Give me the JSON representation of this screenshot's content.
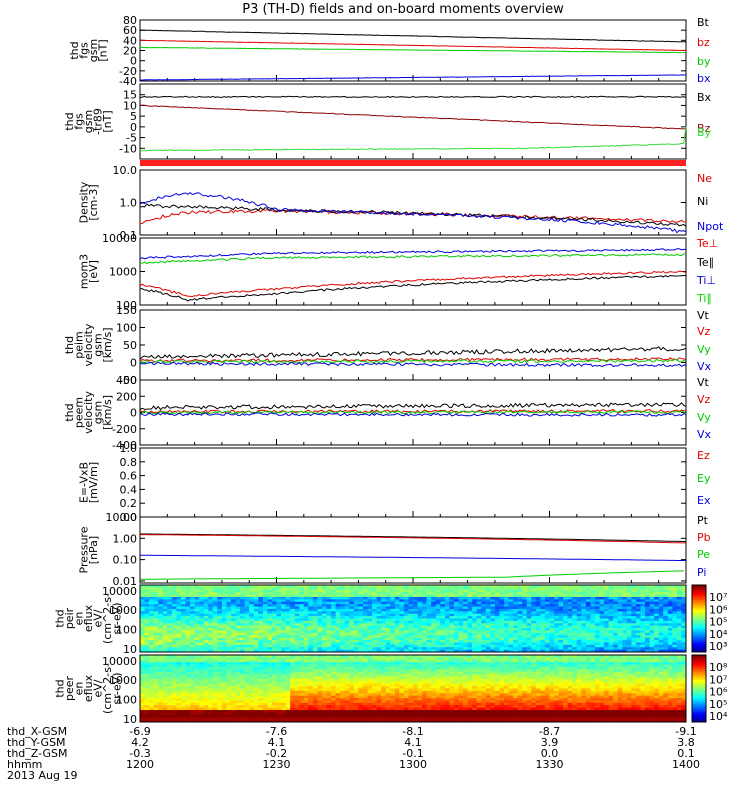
{
  "title": "P3 (TH-D) fields and on-board moments overview",
  "colors": {
    "black": "#000000",
    "red": "#e00000",
    "green": "#00cc00",
    "blue": "#0000dd",
    "darkred": "#8b0000",
    "lime": "#33dd33",
    "stripe": "#ff2020"
  },
  "chart_data": [
    {
      "type": "line",
      "ylabel": [
        "thd",
        "fgs",
        "gsm",
        "[nT]"
      ],
      "ylim": [
        -40,
        80
      ],
      "yticks": [
        "80",
        "60",
        "40",
        "20",
        "0",
        "-20",
        "-40"
      ],
      "series": [
        {
          "name": "Bt",
          "color": "black",
          "x": [
            1200,
            1400
          ],
          "y": [
            60,
            37
          ]
        },
        {
          "name": "bz",
          "color": "red",
          "x": [
            1200,
            1400
          ],
          "y": [
            40,
            20
          ]
        },
        {
          "name": "by",
          "color": "green",
          "x": [
            1200,
            1400
          ],
          "y": [
            26,
            16
          ]
        },
        {
          "name": "bx",
          "color": "blue",
          "x": [
            1200,
            1400
          ],
          "y": [
            -38,
            -28
          ]
        }
      ]
    },
    {
      "type": "line",
      "ylabel": [
        "thd",
        "fgs",
        "gsm",
        "-tr89",
        "[nT]"
      ],
      "ylim": [
        -15,
        20
      ],
      "yticks": [
        "15",
        "10",
        "5",
        "0",
        "-5",
        "-10"
      ],
      "series": [
        {
          "name": "Bx",
          "color": "black",
          "x": [
            1200,
            1400
          ],
          "y": [
            14,
            14
          ]
        },
        {
          "name": "Bz",
          "color": "darkred",
          "x": [
            1200,
            1400
          ],
          "y": [
            10,
            -1
          ]
        },
        {
          "name": "By",
          "color": "lime",
          "x": [
            1200,
            1325,
            1390,
            1400
          ],
          "y": [
            -11,
            -10,
            -6,
            0
          ]
        }
      ]
    },
    {
      "type": "line",
      "log": true,
      "ylabel": [
        "Density",
        "[cm-3]"
      ],
      "ylim": [
        0.1,
        10
      ],
      "yticks": [
        "10.0",
        "1.0",
        "0.1"
      ],
      "series": [
        {
          "name": "Ne",
          "color": "red",
          "x": [
            1200,
            1210,
            1230,
            1400
          ],
          "y": [
            0.25,
            0.5,
            0.55,
            0.25
          ]
        },
        {
          "name": "Ni",
          "color": "black",
          "x": [
            1200,
            1230,
            1400
          ],
          "y": [
            0.8,
            0.6,
            0.2
          ]
        },
        {
          "name": "Npot",
          "color": "blue",
          "x": [
            1200,
            1210,
            1230,
            1330,
            1400
          ],
          "y": [
            0.9,
            2.0,
            0.6,
            0.3,
            0.12
          ]
        }
      ]
    },
    {
      "type": "line",
      "log": true,
      "ylabel": [
        "mom3",
        "[eV]"
      ],
      "ylim": [
        100,
        10000
      ],
      "yticks": [
        "10000",
        "1000",
        "100"
      ],
      "series": [
        {
          "name": "Te⊥",
          "color": "red",
          "x": [
            1200,
            1210,
            1230,
            1400
          ],
          "y": [
            400,
            180,
            300,
            1000
          ]
        },
        {
          "name": "Te∥",
          "color": "black",
          "x": [
            1200,
            1210,
            1230,
            1400
          ],
          "y": [
            300,
            140,
            220,
            750
          ]
        },
        {
          "name": "Ti⊥",
          "color": "blue",
          "x": [
            1200,
            1230,
            1400
          ],
          "y": [
            2500,
            3500,
            4500
          ]
        },
        {
          "name": "Ti∥",
          "color": "green",
          "x": [
            1200,
            1230,
            1400
          ],
          "y": [
            1800,
            2600,
            3200
          ]
        }
      ]
    },
    {
      "type": "line",
      "ylabel": [
        "thd",
        "peim",
        "velocity",
        "gsm",
        "[km/s]"
      ],
      "ylim": [
        -50,
        150
      ],
      "yticks": [
        "150",
        "100",
        "50",
        "0",
        "-50"
      ],
      "series": [
        {
          "name": "Vt",
          "color": "black",
          "x": [
            1200,
            1400
          ],
          "y": [
            15,
            40
          ]
        },
        {
          "name": "Vz",
          "color": "red",
          "x": [
            1200,
            1400
          ],
          "y": [
            5,
            10
          ]
        },
        {
          "name": "Vy",
          "color": "green",
          "x": [
            1200,
            1400
          ],
          "y": [
            2,
            5
          ]
        },
        {
          "name": "Vx",
          "color": "blue",
          "x": [
            1200,
            1400
          ],
          "y": [
            -3,
            -8
          ]
        }
      ]
    },
    {
      "type": "line",
      "ylabel": [
        "thd",
        "peem",
        "velocity",
        "gsm",
        "[km/s]"
      ],
      "ylim": [
        -400,
        400
      ],
      "yticks": [
        "400",
        "200",
        "0",
        "-200",
        "-400"
      ],
      "series": [
        {
          "name": "Vt",
          "color": "black",
          "x": [
            1200,
            1400
          ],
          "y": [
            60,
            100
          ]
        },
        {
          "name": "Vz",
          "color": "red",
          "x": [
            1200,
            1400
          ],
          "y": [
            10,
            20
          ]
        },
        {
          "name": "Vy",
          "color": "green",
          "x": [
            1200,
            1400
          ],
          "y": [
            0,
            5
          ]
        },
        {
          "name": "Vx",
          "color": "blue",
          "x": [
            1200,
            1400
          ],
          "y": [
            -20,
            -30
          ]
        }
      ]
    },
    {
      "type": "line",
      "ylabel": [
        "E=-VxB",
        "[mV/m]"
      ],
      "ylim": [
        0,
        1
      ],
      "yticks": [
        "1.0",
        "0.8",
        "0.6",
        "0.4",
        "0.2",
        "0.0"
      ],
      "series": [
        {
          "name": "Ez",
          "color": "red",
          "x": [],
          "y": []
        },
        {
          "name": "Ey",
          "color": "green",
          "x": [],
          "y": []
        },
        {
          "name": "Ex",
          "color": "blue",
          "x": [],
          "y": []
        }
      ]
    },
    {
      "type": "line",
      "log": true,
      "ylabel": [
        "Pressure",
        "[nPa]"
      ],
      "ylim": [
        0.008,
        10
      ],
      "yticks": [
        "10.00",
        "1.00",
        "0.10",
        "0.01"
      ],
      "series": [
        {
          "name": "Pt",
          "color": "black",
          "x": [
            1200,
            1400
          ],
          "y": [
            1.6,
            0.7
          ]
        },
        {
          "name": "Pb",
          "color": "red",
          "x": [
            1200,
            1400
          ],
          "y": [
            1.5,
            0.6
          ]
        },
        {
          "name": "Pe",
          "color": "green",
          "x": [
            1200,
            1320,
            1360,
            1400
          ],
          "y": [
            0.012,
            0.015,
            0.03,
            0.025
          ]
        },
        {
          "name": "Pi",
          "color": "blue",
          "x": [
            1200,
            1400
          ],
          "y": [
            0.16,
            0.09
          ]
        }
      ]
    },
    {
      "type": "heatmap",
      "ylabel": [
        "thd",
        "peir",
        "en",
        "eflux",
        "eV/",
        "(cm^2-s-",
        "sr-eV)"
      ],
      "ylim": [
        7,
        20000
      ],
      "yticks": [
        "10000",
        "1000",
        "100",
        "10"
      ],
      "colorbar": {
        "ticks": [
          "10⁷",
          "10⁶",
          "10⁵",
          "10⁴",
          "10³"
        ]
      }
    },
    {
      "type": "heatmap",
      "ylabel": [
        "thd",
        "peer",
        "en",
        "eflux",
        "eV/",
        "(cm^2-s-",
        "sr-eV)"
      ],
      "ylim": [
        7,
        20000
      ],
      "yticks": [
        "10000",
        "1000",
        "100",
        "10"
      ],
      "colorbar": {
        "ticks": [
          "10⁸",
          "10⁷",
          "10⁶",
          "10⁵",
          "10⁴"
        ]
      }
    }
  ],
  "footer": {
    "rows": [
      {
        "label": "thd_X-GSM",
        "values": [
          "-6.9",
          "-7.6",
          "-8.1",
          "-8.7",
          "-9.1"
        ]
      },
      {
        "label": "thd_Y-GSM",
        "values": [
          "4.2",
          "4.1",
          "4.1",
          "3.9",
          "3.8"
        ]
      },
      {
        "label": "thd_Z-GSM",
        "values": [
          "-0.3",
          "-0.2",
          "-0.1",
          "0.0",
          "0.1"
        ]
      },
      {
        "label": "hhmm",
        "values": [
          "1200",
          "1230",
          "1300",
          "1330",
          "1400"
        ]
      }
    ],
    "date": "2013 Aug 19"
  }
}
